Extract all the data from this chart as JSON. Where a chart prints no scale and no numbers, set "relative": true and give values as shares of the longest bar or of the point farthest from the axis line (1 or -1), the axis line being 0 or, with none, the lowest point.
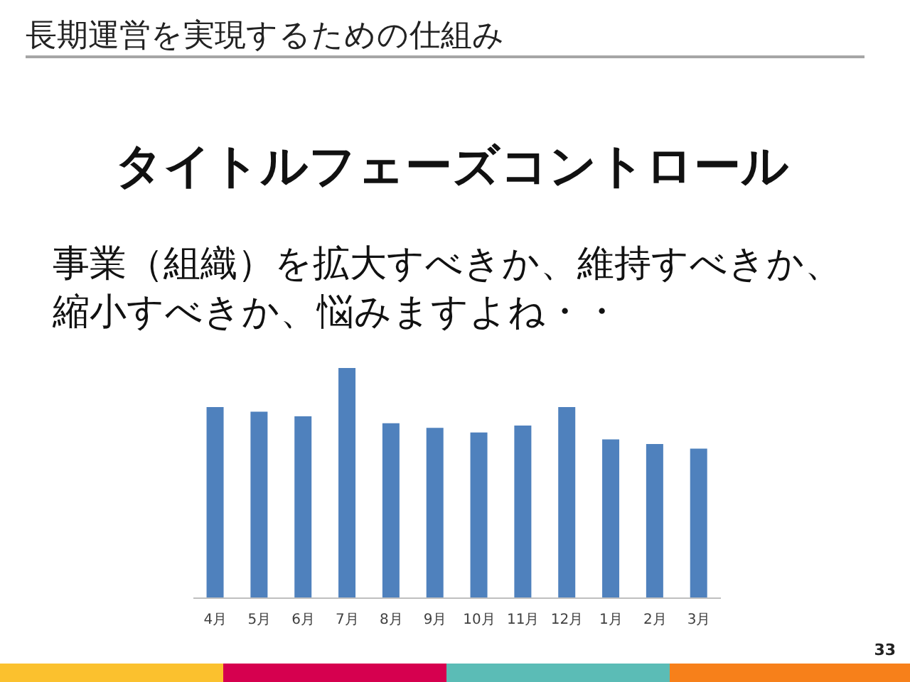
{
  "chart_data": {
    "type": "bar",
    "title": "タイトルフェーズコントロール",
    "subtitle": "事業（組織）を拡大すべきか、維持すべきか、縮小すべきか、悩みますよね・・",
    "annotations": [
      "長期運営を実現するための仕組み",
      "33"
    ],
    "categories": [
      "4月",
      "5月",
      "6月",
      "7月",
      "8月",
      "9月",
      "10月",
      "11月",
      "12月",
      "1月",
      "2月",
      "3月"
    ],
    "values": [
      0.83,
      0.81,
      0.79,
      1,
      0.76,
      0.74,
      0.72,
      0.75,
      0.83,
      0.69,
      0.67,
      0.65
    ],
    "color": "#4f81bd",
    "relative": true
  }
}
